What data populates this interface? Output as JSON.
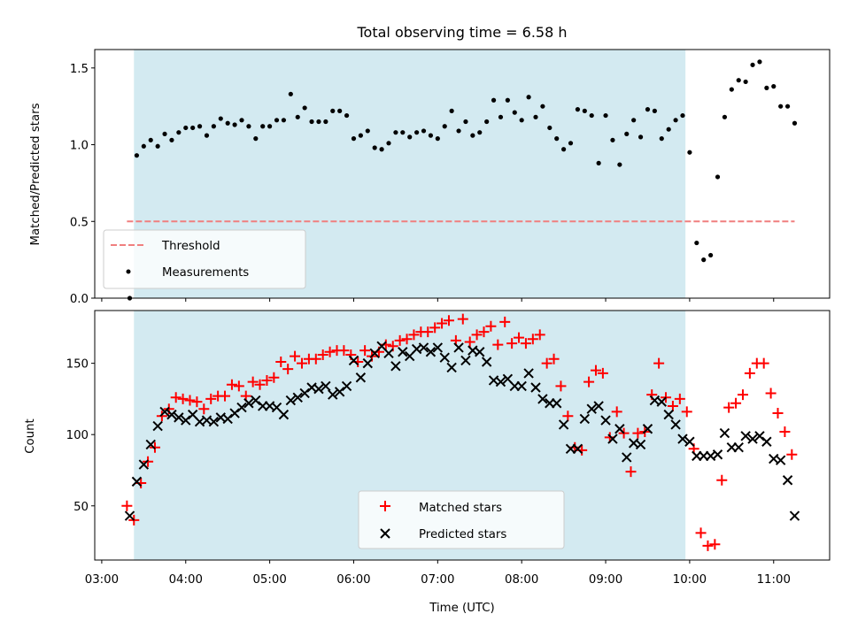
{
  "chart_data": [
    {
      "type": "scatter",
      "title": "Total observing time = 6.58 h",
      "ylabel": "Matched/Predicted stars",
      "xlabel": "",
      "xlim": [
        "02:55",
        "11:40"
      ],
      "ylim": [
        0,
        1.62
      ],
      "grid": false,
      "legend_position": "lower-left",
      "highlight_span": [
        "03:23",
        "09:57"
      ],
      "highlight_color": "#d3eaf1",
      "yticks": [
        "0.0",
        "0.5",
        "1.0",
        "1.5"
      ],
      "ytick_values": [
        0,
        0.5,
        1.0,
        1.5
      ],
      "threshold": {
        "name": "Threshold",
        "value": 0.5,
        "x_range": [
          "03:18",
          "11:15"
        ],
        "color": "#f07f7f"
      },
      "series": [
        {
          "name": "Measurements",
          "color": "#000000",
          "marker": "dot",
          "x": [
            "03:20",
            "03:25",
            "03:30",
            "03:35",
            "03:40",
            "03:45",
            "03:50",
            "03:55",
            "04:00",
            "04:05",
            "04:10",
            "04:15",
            "04:20",
            "04:25",
            "04:30",
            "04:35",
            "04:40",
            "04:45",
            "04:50",
            "04:55",
            "05:00",
            "05:05",
            "05:10",
            "05:15",
            "05:20",
            "05:25",
            "05:30",
            "05:35",
            "05:40",
            "05:45",
            "05:50",
            "05:55",
            "06:00",
            "06:05",
            "06:10",
            "06:15",
            "06:20",
            "06:25",
            "06:30",
            "06:35",
            "06:40",
            "06:45",
            "06:50",
            "06:55",
            "07:00",
            "07:05",
            "07:10",
            "07:15",
            "07:20",
            "07:25",
            "07:30",
            "07:35",
            "07:40",
            "07:45",
            "07:50",
            "07:55",
            "08:00",
            "08:05",
            "08:10",
            "08:15",
            "08:20",
            "08:25",
            "08:30",
            "08:35",
            "08:40",
            "08:45",
            "08:50",
            "08:55",
            "09:00",
            "09:05",
            "09:10",
            "09:15",
            "09:20",
            "09:25",
            "09:30",
            "09:35",
            "09:40",
            "09:45",
            "09:50",
            "09:55",
            "10:00",
            "10:05",
            "10:10",
            "10:15",
            "10:20",
            "10:25",
            "10:30",
            "10:35",
            "10:40",
            "10:45",
            "10:50",
            "10:55",
            "11:00",
            "11:05",
            "11:10",
            "11:15"
          ],
          "y": [
            0.0,
            0.93,
            0.99,
            1.03,
            0.99,
            1.07,
            1.03,
            1.08,
            1.11,
            1.11,
            1.12,
            1.06,
            1.12,
            1.17,
            1.14,
            1.13,
            1.16,
            1.12,
            1.04,
            1.12,
            1.12,
            1.16,
            1.16,
            1.33,
            1.18,
            1.24,
            1.15,
            1.15,
            1.15,
            1.22,
            1.22,
            1.19,
            1.04,
            1.06,
            1.09,
            0.98,
            0.97,
            1.01,
            1.08,
            1.08,
            1.05,
            1.08,
            1.09,
            1.06,
            1.04,
            1.12,
            1.22,
            1.09,
            1.15,
            1.06,
            1.08,
            1.15,
            1.29,
            1.18,
            1.29,
            1.21,
            1.16,
            1.31,
            1.18,
            1.25,
            1.11,
            1.04,
            0.97,
            1.01,
            1.23,
            1.22,
            1.19,
            0.88,
            1.19,
            1.03,
            0.87,
            1.07,
            1.16,
            1.05,
            1.23,
            1.22,
            1.04,
            1.1,
            1.16,
            1.19,
            0.95,
            0.36,
            0.25,
            0.28,
            0.79,
            1.18,
            1.36,
            1.42,
            1.41,
            1.52,
            1.54,
            1.37,
            1.38,
            1.25,
            1.25,
            1.14
          ]
        }
      ]
    },
    {
      "type": "scatter",
      "title": "",
      "ylabel": "Count",
      "xlabel": "Time (UTC)",
      "xlim": [
        "02:55",
        "11:40"
      ],
      "ylim": [
        12,
        187
      ],
      "grid": false,
      "legend_position": "lower-center",
      "highlight_span": [
        "03:23",
        "09:57"
      ],
      "highlight_color": "#d3eaf1",
      "xticks": [
        "03:00",
        "04:00",
        "05:00",
        "06:00",
        "07:00",
        "08:00",
        "09:00",
        "10:00",
        "11:00"
      ],
      "yticks": [
        "50",
        "100",
        "150"
      ],
      "ytick_values": [
        50,
        100,
        150
      ],
      "series": [
        {
          "name": "Matched stars",
          "color": "#ff0000",
          "marker": "plus",
          "x": [
            "03:18",
            "03:23",
            "03:28",
            "03:33",
            "03:38",
            "03:43",
            "03:48",
            "03:53",
            "03:58",
            "04:03",
            "04:08",
            "04:13",
            "04:18",
            "04:23",
            "04:28",
            "04:33",
            "04:38",
            "04:43",
            "04:48",
            "04:53",
            "04:58",
            "05:03",
            "05:08",
            "05:13",
            "05:18",
            "05:23",
            "05:28",
            "05:33",
            "05:38",
            "05:43",
            "05:48",
            "05:53",
            "05:58",
            "06:03",
            "06:08",
            "06:13",
            "06:18",
            "06:23",
            "06:28",
            "06:33",
            "06:38",
            "06:43",
            "06:48",
            "06:53",
            "06:58",
            "07:03",
            "07:08",
            "07:13",
            "07:18",
            "07:23",
            "07:28",
            "07:33",
            "07:38",
            "07:43",
            "07:48",
            "07:53",
            "07:58",
            "08:03",
            "08:08",
            "08:13",
            "08:18",
            "08:23",
            "08:28",
            "08:33",
            "08:38",
            "08:43",
            "08:48",
            "08:53",
            "08:58",
            "09:03",
            "09:08",
            "09:13",
            "09:18",
            "09:23",
            "09:28",
            "09:33",
            "09:38",
            "09:43",
            "09:48",
            "09:53",
            "09:58",
            "10:03",
            "10:08",
            "10:13",
            "10:18",
            "10:23",
            "10:28",
            "10:33",
            "10:38",
            "10:43",
            "10:48",
            "10:53",
            "10:58",
            "11:03",
            "11:08",
            "11:13"
          ],
          "y": [
            50,
            40,
            66,
            81,
            91,
            113,
            118,
            126,
            125,
            124,
            123,
            118,
            125,
            127,
            127,
            135,
            134,
            127,
            137,
            135,
            138,
            140,
            151,
            146,
            155,
            150,
            153,
            153,
            156,
            158,
            159,
            159,
            156,
            151,
            159,
            155,
            158,
            163,
            162,
            166,
            167,
            170,
            172,
            172,
            175,
            178,
            180,
            166,
            181,
            165,
            170,
            172,
            176,
            163,
            179,
            164,
            168,
            164,
            167,
            170,
            150,
            153,
            134,
            113,
            91,
            89,
            137,
            145,
            143,
            98,
            116,
            101,
            74,
            101,
            102,
            128,
            150,
            126,
            120,
            125,
            116,
            90,
            31,
            22,
            23,
            68,
            119,
            122,
            128,
            143,
            150,
            150,
            129,
            115,
            102,
            86
          ],
          "extra_points_note": ""
        },
        {
          "name": "Predicted stars",
          "color": "#000000",
          "marker": "x",
          "x": [
            "03:20",
            "03:25",
            "03:30",
            "03:35",
            "03:40",
            "03:45",
            "03:50",
            "03:55",
            "04:00",
            "04:05",
            "04:10",
            "04:15",
            "04:20",
            "04:25",
            "04:30",
            "04:35",
            "04:40",
            "04:45",
            "04:50",
            "04:55",
            "05:00",
            "05:05",
            "05:10",
            "05:15",
            "05:20",
            "05:25",
            "05:30",
            "05:35",
            "05:40",
            "05:45",
            "05:50",
            "05:55",
            "06:00",
            "06:05",
            "06:10",
            "06:15",
            "06:20",
            "06:25",
            "06:30",
            "06:35",
            "06:40",
            "06:45",
            "06:50",
            "06:55",
            "07:00",
            "07:05",
            "07:10",
            "07:15",
            "07:20",
            "07:25",
            "07:30",
            "07:35",
            "07:40",
            "07:45",
            "07:50",
            "07:55",
            "08:00",
            "08:05",
            "08:10",
            "08:15",
            "08:20",
            "08:25",
            "08:30",
            "08:35",
            "08:40",
            "08:45",
            "08:50",
            "08:55",
            "09:00",
            "09:05",
            "09:10",
            "09:15",
            "09:20",
            "09:25",
            "09:30",
            "09:35",
            "09:40",
            "09:45",
            "09:50",
            "09:55",
            "10:00",
            "10:05",
            "10:10",
            "10:15",
            "10:20",
            "10:25",
            "10:30",
            "10:35",
            "10:40",
            "10:45",
            "10:50",
            "10:55",
            "11:00",
            "11:05",
            "11:10",
            "11:15"
          ],
          "y": [
            43,
            67,
            79,
            93,
            106,
            116,
            114,
            112,
            110,
            114,
            109,
            110,
            109,
            112,
            111,
            115,
            119,
            122,
            124,
            120,
            120,
            119,
            114,
            124,
            126,
            129,
            133,
            132,
            134,
            128,
            130,
            134,
            152,
            140,
            150,
            157,
            162,
            157,
            148,
            158,
            155,
            160,
            161,
            158,
            161,
            154,
            147,
            161,
            152,
            159,
            158,
            151,
            138,
            137,
            139,
            134,
            134,
            143,
            133,
            125,
            122,
            122,
            107,
            90,
            90,
            111,
            118,
            120,
            110,
            97,
            104,
            84,
            94,
            93,
            104,
            124,
            123,
            114,
            107,
            97,
            95,
            85,
            85,
            85,
            86,
            101,
            91,
            91,
            99,
            97,
            99,
            95,
            83,
            82,
            68,
            43
          ]
        }
      ]
    }
  ]
}
